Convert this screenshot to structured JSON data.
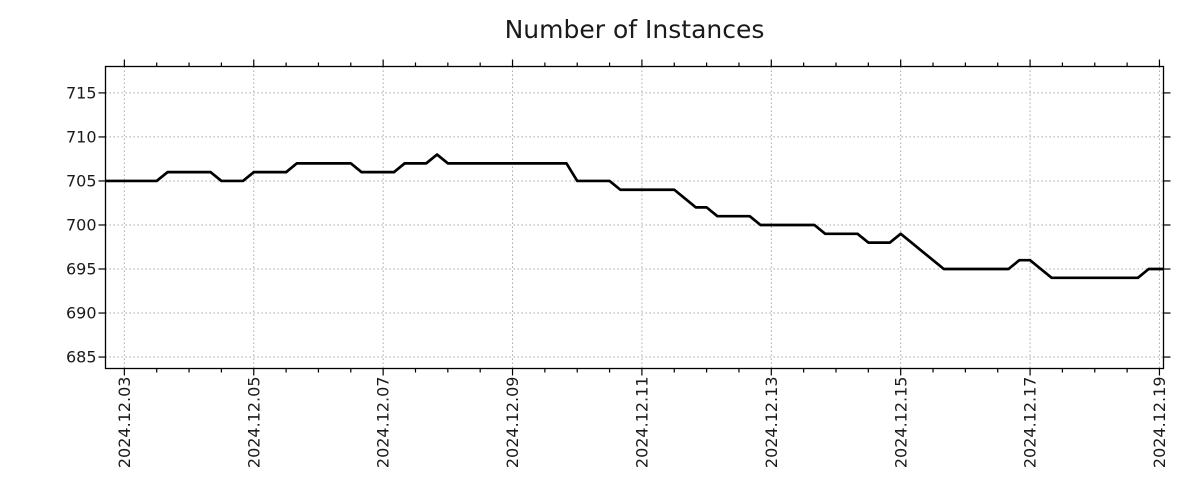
{
  "chart_data": {
    "type": "line",
    "title": "Number of Instances",
    "x_axis": {
      "tick_labels": [
        "2024.12.03",
        "2024.12.05",
        "2024.12.07",
        "2024.12.09",
        "2024.12.11",
        "2024.12.13",
        "2024.12.15",
        "2024.12.17",
        "2024.12.19"
      ],
      "major_tick_interval_days": 2,
      "minor_tick_interval_hours": 12,
      "xlim_hours_from_2024_12_03": [
        -7,
        385.5
      ]
    },
    "y_axis": {
      "ticks": [
        685,
        690,
        695,
        700,
        705,
        710,
        715
      ],
      "ylim": [
        683.7,
        718.0
      ]
    },
    "grid": "dotted",
    "legend": "none",
    "colors": {
      "line": "#000000",
      "grid": "#aaaaaa",
      "axis": "#000000",
      "text": "#1a1a1a",
      "background": "#ffffff"
    },
    "series": [
      {
        "name": "instances",
        "start": "2024-12-02 16:00",
        "start_offset_hours": -8,
        "interval_hours": 4,
        "values": [
          705,
          705,
          705,
          705,
          705,
          705,
          706,
          706,
          706,
          706,
          706,
          705,
          705,
          705,
          706,
          706,
          706,
          706,
          707,
          707,
          707,
          707,
          707,
          707,
          706,
          706,
          706,
          706,
          707,
          707,
          707,
          708,
          707,
          707,
          707,
          707,
          707,
          707,
          707,
          707,
          707,
          707,
          707,
          707,
          705,
          705,
          705,
          705,
          704,
          704,
          704,
          704,
          704,
          704,
          703,
          702,
          702,
          701,
          701,
          701,
          701,
          700,
          700,
          700,
          700,
          700,
          700,
          699,
          699,
          699,
          699,
          698,
          698,
          698,
          699,
          698,
          697,
          696,
          695,
          695,
          695,
          695,
          695,
          695,
          695,
          696,
          696,
          695,
          694,
          694,
          694,
          694,
          694,
          694,
          694,
          694,
          694,
          695,
          695
        ]
      }
    ]
  }
}
